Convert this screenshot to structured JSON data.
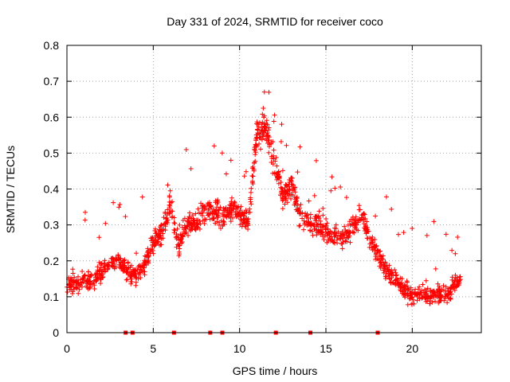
{
  "chart_data": {
    "type": "scatter",
    "title": "Day 331 of 2024, SRMTID for receiver coco",
    "xlabel": "GPS time / hours",
    "ylabel": "SRMTID / TECUs",
    "xlim": [
      0,
      24
    ],
    "ylim": [
      0,
      0.8
    ],
    "xticks": [
      0,
      5,
      10,
      15,
      20
    ],
    "yticks": [
      0,
      0.1,
      0.2,
      0.3,
      0.4,
      0.5,
      0.6,
      0.7,
      0.8
    ],
    "grid": true,
    "marker": "+",
    "series_color": "#ff0000",
    "series": [
      {
        "name": "SRMTID",
        "trend_x": [
          0,
          0.5,
          1,
          1.5,
          2,
          2.5,
          3,
          3.5,
          4,
          4.5,
          5,
          5.5,
          6,
          6.5,
          7,
          7.5,
          8,
          8.5,
          9,
          9.5,
          10,
          10.5,
          11,
          11.5,
          12,
          12.5,
          13,
          13.5,
          14,
          14.5,
          15,
          15.5,
          16,
          16.5,
          17,
          17.5,
          18,
          18.5,
          19,
          19.5,
          20,
          20.5,
          21,
          21.5,
          22,
          22.5,
          22.8
        ],
        "trend_y": [
          0.14,
          0.13,
          0.15,
          0.14,
          0.17,
          0.19,
          0.2,
          0.17,
          0.16,
          0.19,
          0.25,
          0.28,
          0.36,
          0.24,
          0.31,
          0.3,
          0.35,
          0.33,
          0.32,
          0.35,
          0.33,
          0.31,
          0.55,
          0.57,
          0.47,
          0.38,
          0.41,
          0.33,
          0.31,
          0.3,
          0.28,
          0.27,
          0.26,
          0.29,
          0.33,
          0.27,
          0.22,
          0.17,
          0.15,
          0.12,
          0.1,
          0.11,
          0.1,
          0.11,
          0.1,
          0.14,
          0.15
        ],
        "spread": 0.06,
        "count": 1500
      }
    ],
    "zero_points_x": [
      3.4,
      3.8,
      6.2,
      8.3,
      9.0,
      12.1,
      14.1,
      18.0
    ]
  }
}
